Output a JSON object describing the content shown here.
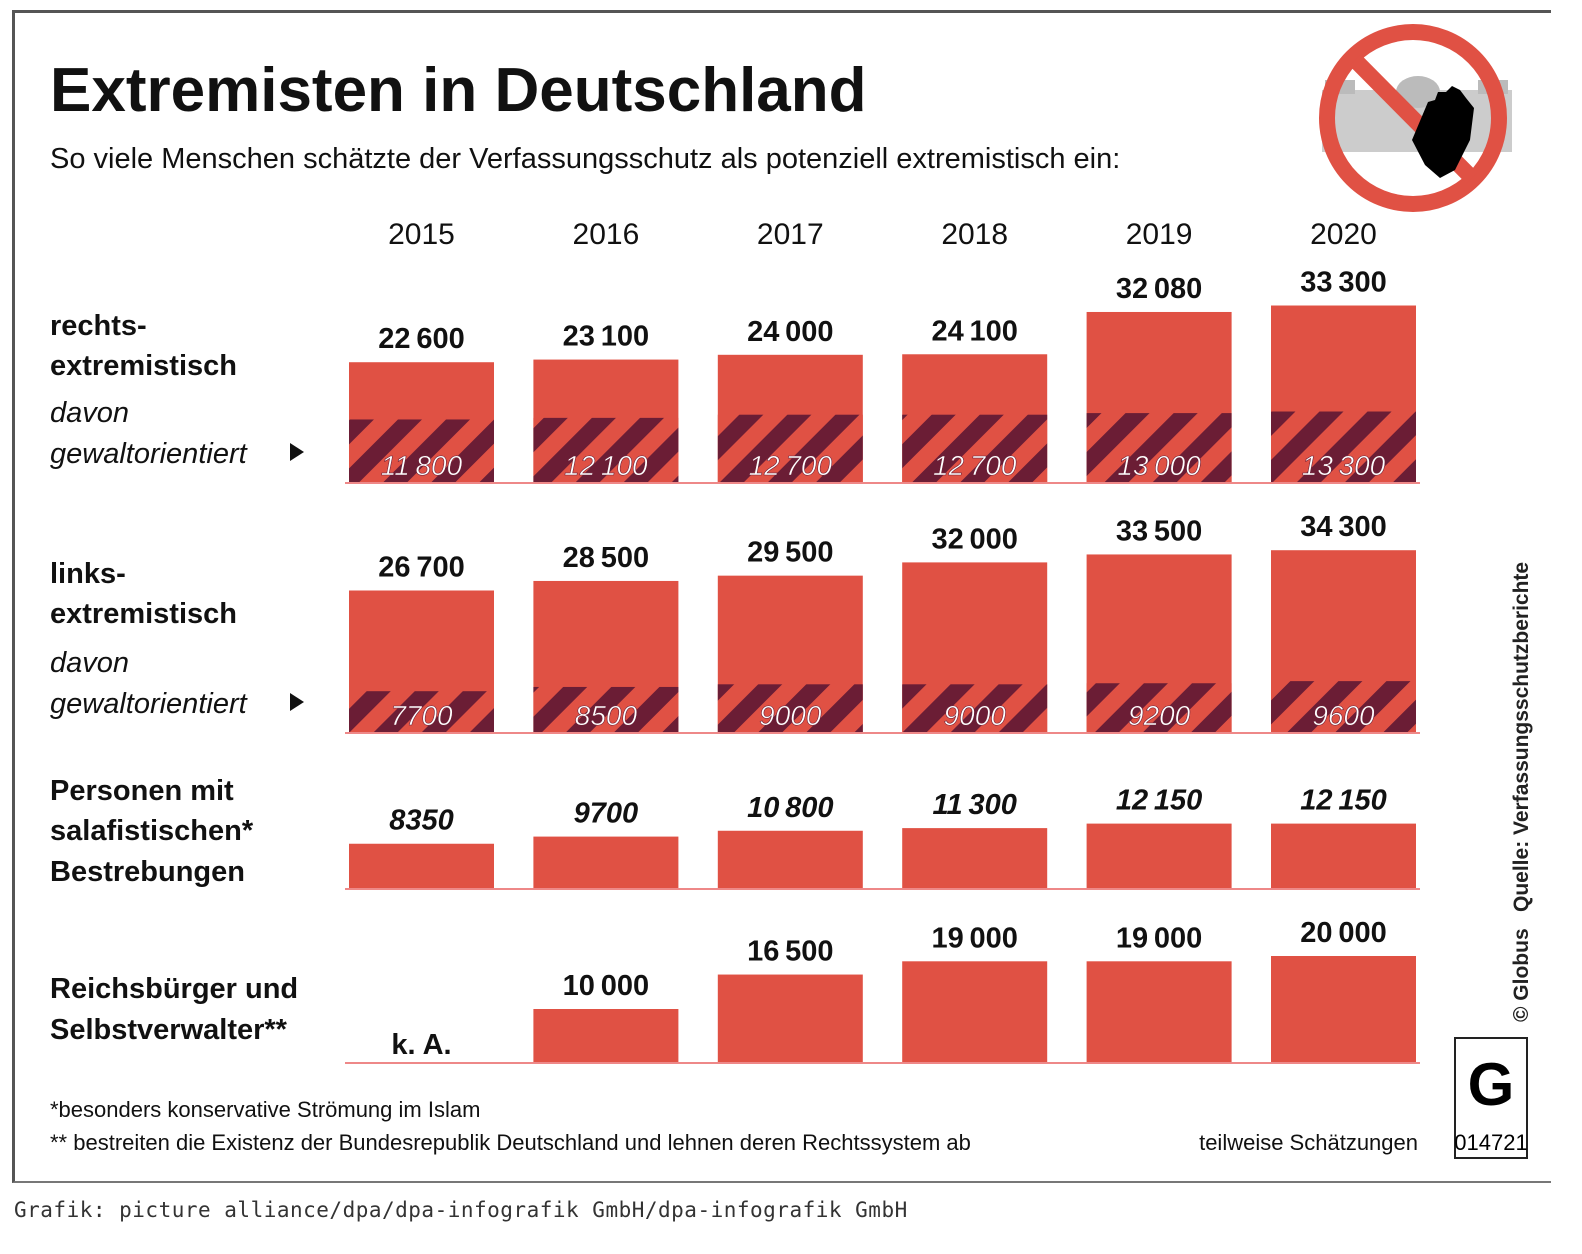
{
  "title": "Extremisten in Deutschland",
  "subtitle": "So viele Menschen schätzte der Verfassungsschutz als potenziell extremistisch ein:",
  "colors": {
    "bar": "#e05144",
    "hatch": "#6b1d35",
    "text": "#111111"
  },
  "chart_data": {
    "type": "bar",
    "title": "Extremisten in Deutschland",
    "categories": [
      "2015",
      "2016",
      "2017",
      "2018",
      "2019",
      "2020"
    ],
    "rows": [
      {
        "label": [
          "rechts-",
          "extremistisch"
        ],
        "sublabel": [
          "davon",
          "gewaltorientiert"
        ],
        "values": [
          22600,
          23100,
          24000,
          24100,
          32080,
          33300
        ],
        "sub_values": [
          11800,
          12100,
          12700,
          12700,
          13000,
          13300
        ]
      },
      {
        "label": [
          "links-",
          "extremistisch"
        ],
        "sublabel": [
          "davon",
          "gewaltorientiert"
        ],
        "values": [
          26700,
          28500,
          29500,
          32000,
          33500,
          34300
        ],
        "sub_values": [
          7700,
          8500,
          9000,
          9000,
          9200,
          9600
        ]
      },
      {
        "label": [
          "Personen mit",
          "salafistischen*",
          "Bestrebungen"
        ],
        "values": [
          8350,
          9700,
          10800,
          11300,
          12150,
          12150
        ]
      },
      {
        "label": [
          "Reichsbürger und",
          "Selbstverwalter**"
        ],
        "values": [
          null,
          10000,
          16500,
          19000,
          19000,
          20000
        ],
        "missing_label": "k. A."
      }
    ]
  },
  "footnotes": [
    "*besonders konservative Strömung im Islam",
    "** bestreiten die Existenz der Bundesrepublik Deutschland und lehnen deren Rechtssystem ab"
  ],
  "estimate_note": "teilweise Schätzungen",
  "source": "Quelle: Verfassungsschutzberichte",
  "copyright": "© Globus",
  "logo": {
    "letter": "G",
    "number": "014721"
  },
  "caption": "Grafik: picture alliance/dpa/dpa-infografik GmbH/dpa-infografik GmbH"
}
